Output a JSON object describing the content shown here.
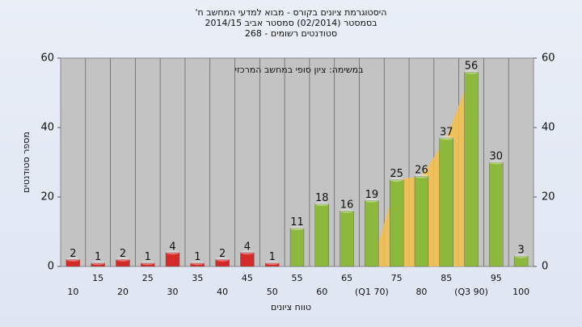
{
  "chart_data": {
    "type": "bar",
    "title": "היסטוגרמת ציונים בקורס - מבוא למדעי המחשב ח'",
    "subtitle": "בסמסטר (02/2014) סמסטר אביב 2014/15",
    "subtitle2": "סטודנטים רשומים - 268",
    "annotation": "במשימה: ציון סופי במחשב המרכזי",
    "y_label": "מספר סטודנטים",
    "x_label": "טווח ציונים",
    "categories": [
      "10",
      "15",
      "20",
      "25",
      "30",
      "35",
      "40",
      "45",
      "50",
      "55",
      "60",
      "65",
      "(Q1 70)",
      "75",
      "80",
      "85",
      "(Q3 90)",
      "95",
      "100"
    ],
    "values": [
      2,
      1,
      2,
      1,
      4,
      1,
      2,
      4,
      1,
      11,
      18,
      16,
      19,
      25,
      26,
      37,
      56,
      30,
      3
    ],
    "colors": [
      "#d42a2a",
      "#d42a2a",
      "#d42a2a",
      "#d42a2a",
      "#d42a2a",
      "#d42a2a",
      "#d42a2a",
      "#d42a2a",
      "#d42a2a",
      "#8cb83c",
      "#8cb83c",
      "#8cb83c",
      "#8cb83c",
      "#8cb83c",
      "#8cb83c",
      "#8cb83c",
      "#8cb83c",
      "#8cb83c",
      "#8cb83c"
    ],
    "ylim": [
      0,
      60
    ],
    "yticks": [
      0,
      20,
      40,
      60
    ],
    "y2lim": [
      0,
      60
    ],
    "y2ticks": [
      0,
      20,
      40,
      60
    ],
    "grid": true
  }
}
